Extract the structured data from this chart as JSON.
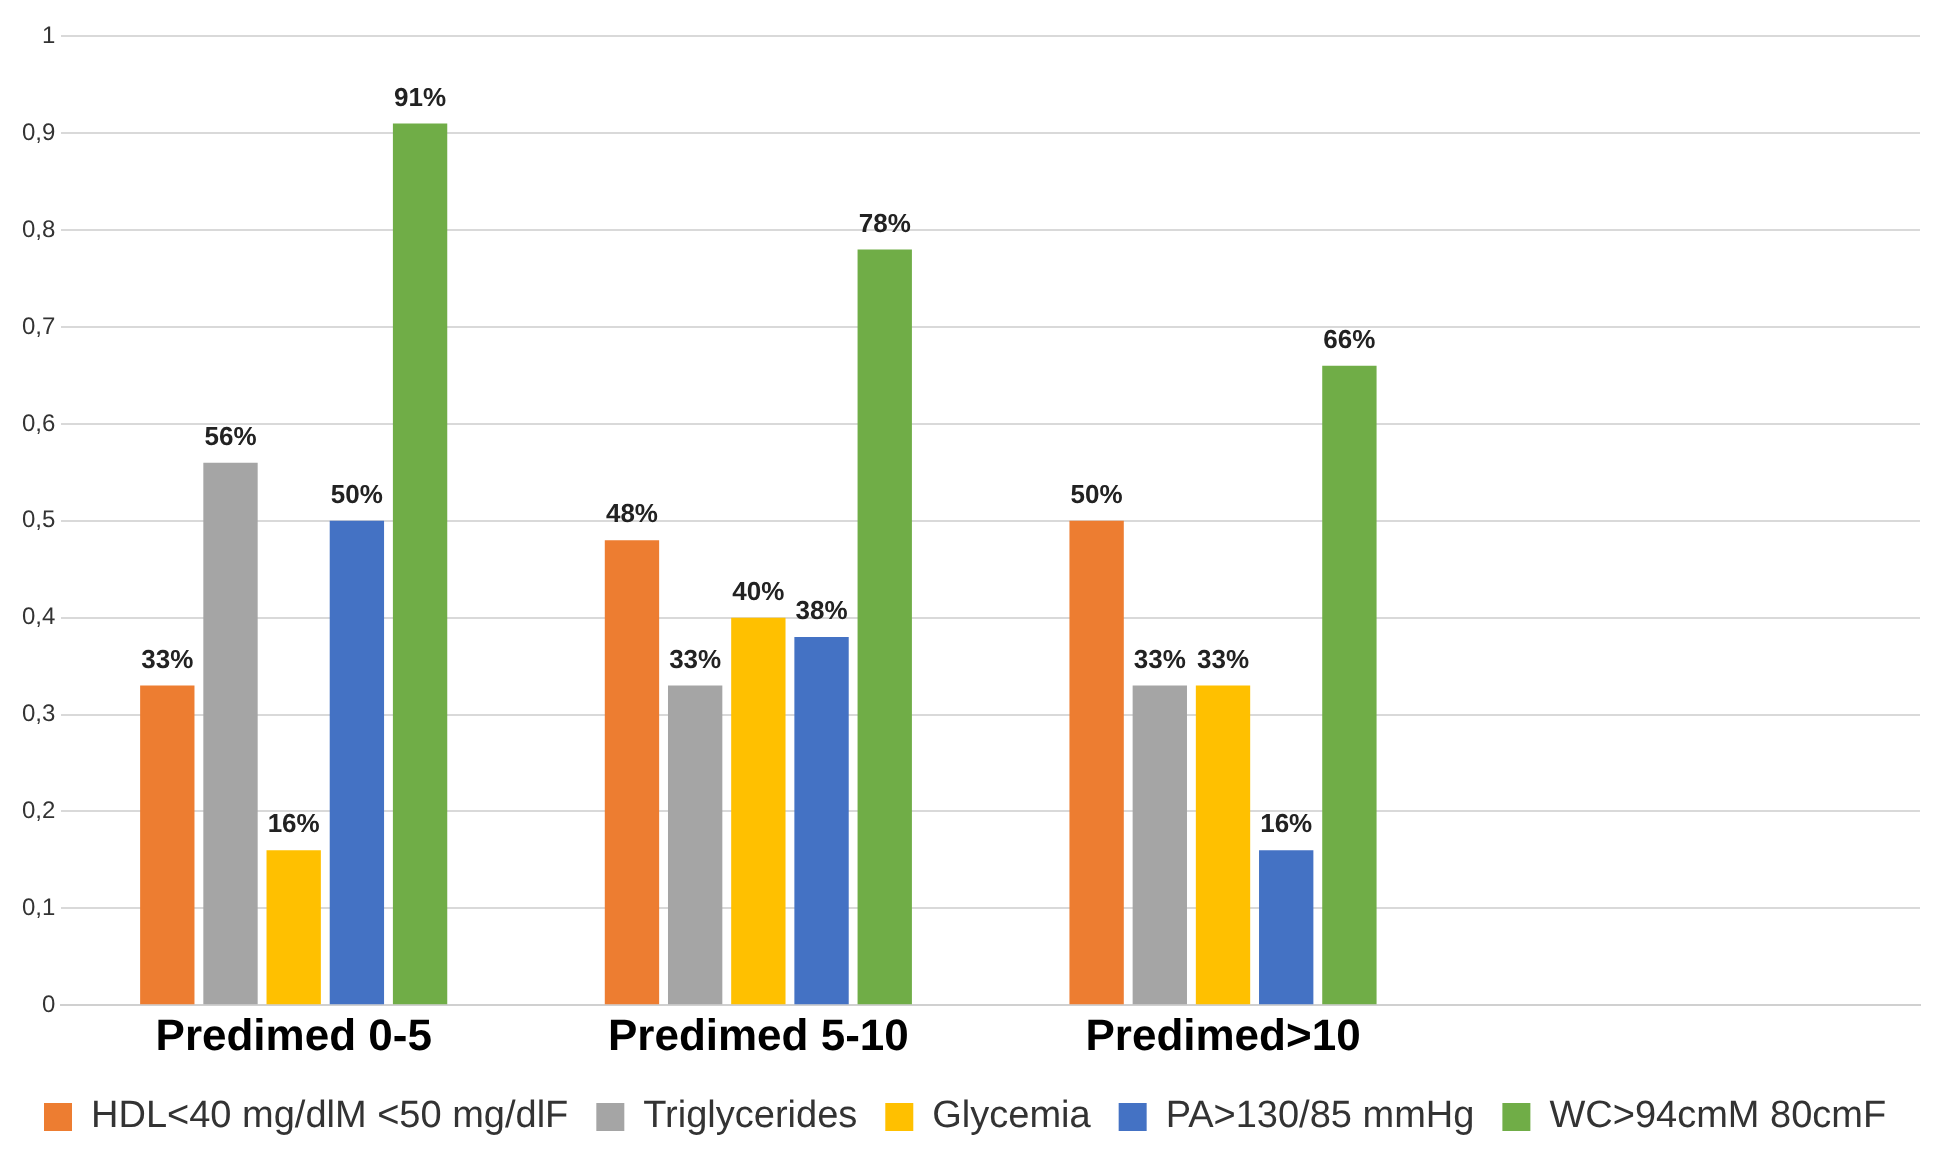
{
  "chart_data": {
    "type": "bar",
    "categories": [
      "Predimed 0-5",
      "Predimed 5-10",
      "Predimed>10",
      null
    ],
    "series": [
      {
        "name": "HDL<40 mg/dlM <50 mg/dlF",
        "color": "#ed7d31",
        "values": [
          0.33,
          0.48,
          0.5,
          null
        ],
        "value_labels": [
          "33%",
          "48%",
          "50%",
          null
        ]
      },
      {
        "name": "Triglycerides",
        "color": "#a5a5a5",
        "values": [
          0.56,
          0.33,
          0.33,
          null
        ],
        "value_labels": [
          "56%",
          "33%",
          "33%",
          null
        ]
      },
      {
        "name": "Glycemia",
        "color": "#ffc000",
        "values": [
          0.16,
          0.4,
          0.33,
          null
        ],
        "value_labels": [
          "16%",
          "40%",
          "33%",
          null
        ]
      },
      {
        "name": "PA>130/85 mmHg",
        "color": "#4472c4",
        "values": [
          0.5,
          0.38,
          0.16,
          null
        ],
        "value_labels": [
          "50%",
          "38%",
          "16%",
          null
        ]
      },
      {
        "name": "WC>94cmM 80cmF",
        "color": "#70ad47",
        "values": [
          0.91,
          0.78,
          0.66,
          null
        ],
        "value_labels": [
          "91%",
          "78%",
          "66%",
          null
        ]
      }
    ],
    "ylim": [
      0,
      1
    ],
    "yticks": [
      0,
      {
        "value": 0.1,
        "label": "0,1"
      },
      {
        "value": 0.2,
        "label": "0,2"
      },
      {
        "value": 0.3,
        "label": "0,3"
      },
      {
        "value": 0.4,
        "label": "0,4"
      },
      {
        "value": 0.5,
        "label": "0,5"
      },
      {
        "value": 0.6,
        "label": "0,6"
      },
      {
        "value": 0.7,
        "label": "0,7"
      },
      {
        "value": 0.8,
        "label": "0,8"
      },
      {
        "value": 0.9,
        "label": "0,9"
      },
      1
    ],
    "grid": "y",
    "legend": "bottom"
  }
}
